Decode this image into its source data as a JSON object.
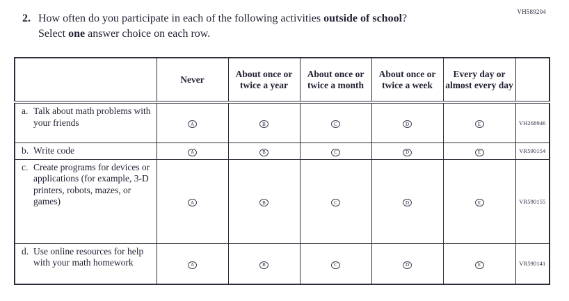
{
  "page": {
    "form_code": "VH589204"
  },
  "question": {
    "number": "2.",
    "line1_segments": [
      {
        "text": "How often do you participate in each of the following activities ",
        "bold": false
      },
      {
        "text": "outside of school",
        "bold": true
      },
      {
        "text": "?",
        "bold": false
      }
    ],
    "line2_segments": [
      {
        "text": "Select ",
        "bold": false
      },
      {
        "text": "one",
        "bold": true
      },
      {
        "text": " answer choice on each row.",
        "bold": false
      }
    ]
  },
  "table": {
    "column_headers": [
      "Never",
      "About once or twice a year",
      "About once or twice a month",
      "About once or twice a week",
      "Every day or almost every day"
    ],
    "option_letters": [
      "A",
      "B",
      "C",
      "D",
      "E"
    ],
    "rows": [
      {
        "marker": "a.",
        "label": "Talk about math problems with your friends",
        "code": "VH268946"
      },
      {
        "marker": "b.",
        "label": "Write code",
        "code": "VR590154"
      },
      {
        "marker": "c.",
        "label": "Create programs for devices or applications (for example, 3-D printers, robots, mazes, or games)",
        "code": "VR590155"
      },
      {
        "marker": "d.",
        "label": "Use online resources for help with your math homework",
        "code": "VR590141"
      }
    ]
  },
  "colors": {
    "text": "#232334",
    "border": "#2e2e38",
    "background": "#ffffff"
  }
}
